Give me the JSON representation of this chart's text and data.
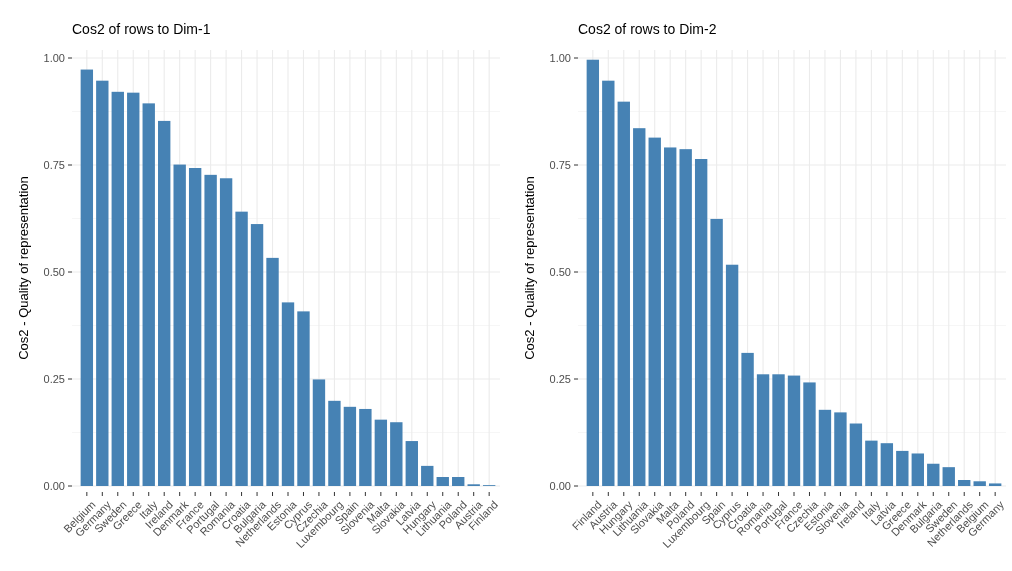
{
  "chart_data": [
    {
      "type": "bar",
      "title": "Cos2 of rows to Dim-1",
      "ylabel": "Cos2 - Quality of representation",
      "categories": [
        "Belgium",
        "Germany",
        "Sweden",
        "Greece",
        "Italy",
        "Ireland",
        "Denmark",
        "France",
        "Portugal",
        "Romania",
        "Croatia",
        "Bulgaria",
        "Netherlands",
        "Estonia",
        "Cyprus",
        "Czechia",
        "Luxembourg",
        "Spain",
        "Slovenia",
        "Malta",
        "Slovakia",
        "Latvia",
        "Hungary",
        "Lithuania",
        "Poland",
        "Austria",
        "Finland"
      ],
      "values": [
        0.973,
        0.947,
        0.921,
        0.919,
        0.894,
        0.853,
        0.751,
        0.743,
        0.727,
        0.719,
        0.641,
        0.612,
        0.533,
        0.429,
        0.408,
        0.249,
        0.199,
        0.185,
        0.18,
        0.155,
        0.149,
        0.105,
        0.047,
        0.021,
        0.021,
        0.004,
        0.002
      ],
      "color": "#4682b4",
      "ylim": [
        0,
        1
      ],
      "yticks": [
        {
          "value": 0,
          "label": "0.00"
        },
        {
          "value": 0.25,
          "label": "0.25"
        },
        {
          "value": 0.5,
          "label": "0.50"
        },
        {
          "value": 0.75,
          "label": "0.75"
        },
        {
          "value": 1,
          "label": "1.00"
        }
      ],
      "grid": true
    },
    {
      "type": "bar",
      "title": "Cos2 of rows to Dim-2",
      "ylabel": "Cos2 - Quality of representation",
      "categories": [
        "Finland",
        "Austria",
        "Hungary",
        "Lithuania",
        "Slovakia",
        "Malta",
        "Poland",
        "Luxembourg",
        "Spain",
        "Cyprus",
        "Croatia",
        "Romania",
        "Portugal",
        "France",
        "Czechia",
        "Estonia",
        "Slovenia",
        "Ireland",
        "Italy",
        "Latvia",
        "Greece",
        "Denmark",
        "Bulgaria",
        "Sweden",
        "Netherlands",
        "Belgium",
        "Germany"
      ],
      "values": [
        0.996,
        0.947,
        0.898,
        0.836,
        0.814,
        0.791,
        0.787,
        0.764,
        0.624,
        0.517,
        0.311,
        0.261,
        0.261,
        0.258,
        0.242,
        0.178,
        0.172,
        0.146,
        0.106,
        0.1,
        0.082,
        0.076,
        0.052,
        0.044,
        0.014,
        0.011,
        0.006
      ],
      "color": "#4682b4",
      "ylim": [
        0,
        1
      ],
      "yticks": [
        {
          "value": 0,
          "label": "0.00"
        },
        {
          "value": 0.25,
          "label": "0.25"
        },
        {
          "value": 0.5,
          "label": "0.50"
        },
        {
          "value": 0.75,
          "label": "0.75"
        },
        {
          "value": 1,
          "label": "1.00"
        }
      ],
      "grid": true
    }
  ]
}
